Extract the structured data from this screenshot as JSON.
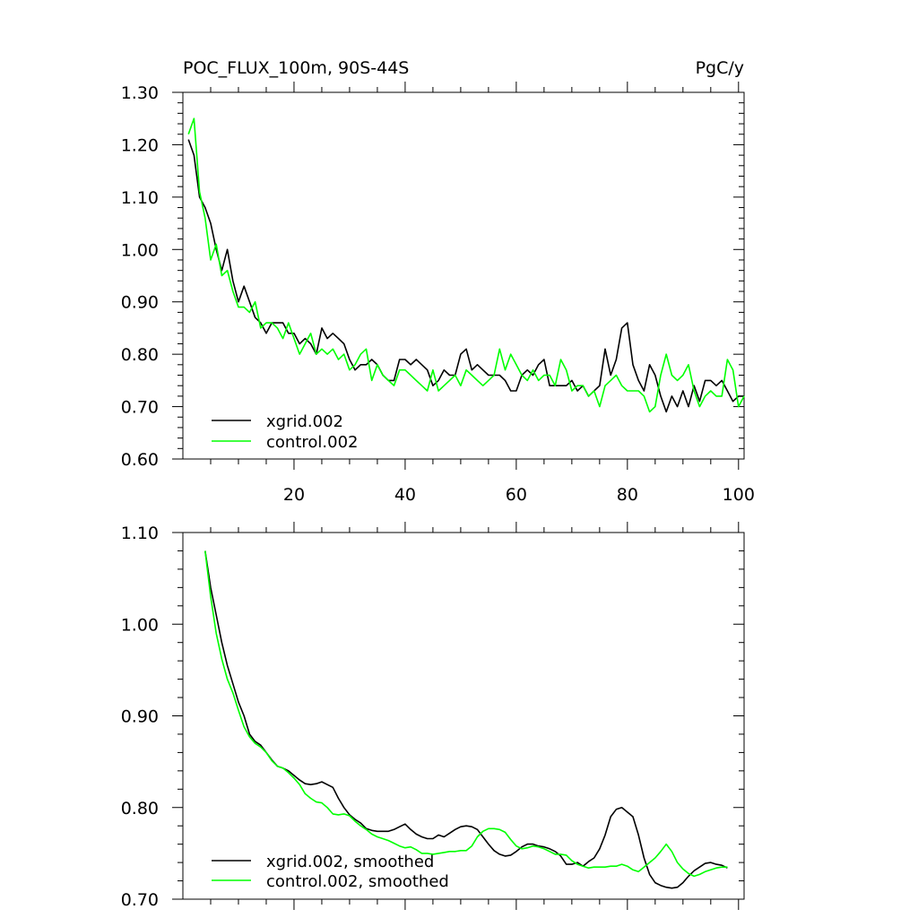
{
  "title_left": "POC_FLUX_100m, 90S-44S",
  "title_right": "PgC/y",
  "chart_data": [
    {
      "type": "line",
      "title": "POC_FLUX_100m, 90S-44S",
      "units": "PgC/y",
      "xlim": [
        0,
        101
      ],
      "ylim": [
        0.6,
        1.3
      ],
      "x_ticks": [
        20,
        40,
        60,
        80,
        100
      ],
      "x_tick_labels": [
        "20",
        "40",
        "60",
        "80",
        "100"
      ],
      "y_ticks": [
        0.6,
        0.7,
        0.8,
        0.9,
        1.0,
        1.1,
        1.2,
        1.3
      ],
      "y_tick_labels": [
        "0.60",
        "0.70",
        "0.80",
        "0.90",
        "1.00",
        "1.10",
        "1.20",
        "1.30"
      ],
      "grid": false,
      "legend_position": "bottom-left",
      "series": [
        {
          "name": "xgrid.002",
          "color": "#000000",
          "x": [
            1,
            2,
            3,
            4,
            5,
            6,
            7,
            8,
            9,
            10,
            11,
            12,
            13,
            14,
            15,
            16,
            17,
            18,
            19,
            20,
            21,
            22,
            23,
            24,
            25,
            26,
            27,
            28,
            29,
            30,
            31,
            32,
            33,
            34,
            35,
            36,
            37,
            38,
            39,
            40,
            41,
            42,
            43,
            44,
            45,
            46,
            47,
            48,
            49,
            50,
            51,
            52,
            53,
            54,
            55,
            56,
            57,
            58,
            59,
            60,
            61,
            62,
            63,
            64,
            65,
            66,
            67,
            68,
            69,
            70,
            71,
            72,
            73,
            74,
            75,
            76,
            77,
            78,
            79,
            80,
            81,
            82,
            83,
            84,
            85,
            86,
            87,
            88,
            89,
            90,
            91,
            92,
            93,
            94,
            95,
            96,
            97,
            98,
            99,
            100,
            101
          ],
          "y": [
            1.21,
            1.18,
            1.1,
            1.08,
            1.05,
            1.0,
            0.96,
            1.0,
            0.94,
            0.9,
            0.93,
            0.9,
            0.87,
            0.86,
            0.84,
            0.86,
            0.86,
            0.86,
            0.84,
            0.84,
            0.82,
            0.83,
            0.82,
            0.8,
            0.85,
            0.83,
            0.84,
            0.83,
            0.82,
            0.79,
            0.77,
            0.78,
            0.78,
            0.79,
            0.78,
            0.76,
            0.75,
            0.75,
            0.79,
            0.79,
            0.78,
            0.79,
            0.78,
            0.77,
            0.74,
            0.75,
            0.77,
            0.76,
            0.76,
            0.8,
            0.81,
            0.77,
            0.78,
            0.77,
            0.76,
            0.76,
            0.76,
            0.75,
            0.73,
            0.73,
            0.76,
            0.77,
            0.76,
            0.78,
            0.79,
            0.74,
            0.74,
            0.74,
            0.74,
            0.75,
            0.73,
            0.74,
            0.72,
            0.73,
            0.74,
            0.81,
            0.76,
            0.79,
            0.85,
            0.86,
            0.78,
            0.75,
            0.73,
            0.78,
            0.76,
            0.72,
            0.69,
            0.72,
            0.7,
            0.73,
            0.7,
            0.74,
            0.71,
            0.75,
            0.75,
            0.74,
            0.75,
            0.73,
            0.71,
            0.72,
            0.72
          ]
        },
        {
          "name": "control.002",
          "color": "#00ff00",
          "x": [
            1,
            2,
            3,
            4,
            5,
            6,
            7,
            8,
            9,
            10,
            11,
            12,
            13,
            14,
            15,
            16,
            17,
            18,
            19,
            20,
            21,
            22,
            23,
            24,
            25,
            26,
            27,
            28,
            29,
            30,
            31,
            32,
            33,
            34,
            35,
            36,
            37,
            38,
            39,
            40,
            41,
            42,
            43,
            44,
            45,
            46,
            47,
            48,
            49,
            50,
            51,
            52,
            53,
            54,
            55,
            56,
            57,
            58,
            59,
            60,
            61,
            62,
            63,
            64,
            65,
            66,
            67,
            68,
            69,
            70,
            71,
            72,
            73,
            74,
            75,
            76,
            77,
            78,
            79,
            80,
            81,
            82,
            83,
            84,
            85,
            86,
            87,
            88,
            89,
            90,
            91,
            92,
            93,
            94,
            95,
            96,
            97,
            98,
            99,
            100,
            101
          ],
          "y": [
            1.22,
            1.25,
            1.11,
            1.06,
            0.98,
            1.01,
            0.95,
            0.96,
            0.92,
            0.89,
            0.89,
            0.88,
            0.9,
            0.85,
            0.86,
            0.86,
            0.85,
            0.83,
            0.86,
            0.83,
            0.8,
            0.82,
            0.84,
            0.8,
            0.81,
            0.8,
            0.81,
            0.79,
            0.8,
            0.77,
            0.78,
            0.8,
            0.81,
            0.75,
            0.78,
            0.76,
            0.75,
            0.74,
            0.77,
            0.77,
            0.76,
            0.75,
            0.74,
            0.73,
            0.77,
            0.73,
            0.74,
            0.75,
            0.76,
            0.74,
            0.77,
            0.76,
            0.75,
            0.74,
            0.75,
            0.76,
            0.81,
            0.77,
            0.8,
            0.78,
            0.76,
            0.75,
            0.77,
            0.75,
            0.76,
            0.76,
            0.74,
            0.79,
            0.77,
            0.73,
            0.74,
            0.74,
            0.72,
            0.73,
            0.7,
            0.74,
            0.75,
            0.76,
            0.74,
            0.73,
            0.73,
            0.73,
            0.72,
            0.69,
            0.7,
            0.76,
            0.8,
            0.76,
            0.75,
            0.76,
            0.78,
            0.73,
            0.7,
            0.72,
            0.73,
            0.72,
            0.72,
            0.79,
            0.77,
            0.7,
            0.72
          ]
        }
      ]
    },
    {
      "type": "line",
      "xlim": [
        0,
        101
      ],
      "ylim": [
        0.7,
        1.1
      ],
      "y_ticks": [
        0.7,
        0.8,
        0.9,
        1.0,
        1.1
      ],
      "y_tick_labels": [
        "0.70",
        "0.80",
        "0.90",
        "1.00",
        "1.10"
      ],
      "grid": false,
      "legend_position": "bottom-left",
      "series": [
        {
          "name": "xgrid.002, smoothed",
          "color": "#000000",
          "x": [
            4,
            5,
            6,
            7,
            8,
            9,
            10,
            11,
            12,
            13,
            14,
            15,
            16,
            17,
            18,
            19,
            20,
            21,
            22,
            23,
            24,
            25,
            26,
            27,
            28,
            29,
            30,
            31,
            32,
            33,
            34,
            35,
            36,
            37,
            38,
            39,
            40,
            41,
            42,
            43,
            44,
            45,
            46,
            47,
            48,
            49,
            50,
            51,
            52,
            53,
            54,
            55,
            56,
            57,
            58,
            59,
            60,
            61,
            62,
            63,
            64,
            65,
            66,
            67,
            68,
            69,
            70,
            71,
            72,
            73,
            74,
            75,
            76,
            77,
            78,
            79,
            80,
            81,
            82,
            83,
            84,
            85,
            86,
            87,
            88,
            89,
            90,
            91,
            92,
            93,
            94,
            95,
            96,
            97,
            98
          ],
          "y": [
            1.08,
            1.04,
            1.01,
            0.98,
            0.955,
            0.935,
            0.915,
            0.9,
            0.88,
            0.872,
            0.868,
            0.86,
            0.852,
            0.845,
            0.843,
            0.84,
            0.835,
            0.83,
            0.826,
            0.825,
            0.826,
            0.828,
            0.825,
            0.822,
            0.81,
            0.8,
            0.792,
            0.787,
            0.783,
            0.777,
            0.775,
            0.774,
            0.774,
            0.774,
            0.776,
            0.779,
            0.782,
            0.776,
            0.771,
            0.768,
            0.766,
            0.766,
            0.77,
            0.768,
            0.772,
            0.776,
            0.779,
            0.78,
            0.779,
            0.776,
            0.768,
            0.76,
            0.753,
            0.749,
            0.747,
            0.748,
            0.752,
            0.757,
            0.76,
            0.76,
            0.758,
            0.757,
            0.755,
            0.752,
            0.747,
            0.738,
            0.738,
            0.74,
            0.736,
            0.741,
            0.745,
            0.755,
            0.77,
            0.79,
            0.798,
            0.8,
            0.795,
            0.79,
            0.77,
            0.745,
            0.727,
            0.718,
            0.715,
            0.713,
            0.712,
            0.713,
            0.718,
            0.725,
            0.731,
            0.735,
            0.739,
            0.74,
            0.738,
            0.737,
            0.734
          ]
        },
        {
          "name": "control.002, smoothed",
          "color": "#00ff00",
          "x": [
            4,
            5,
            6,
            7,
            8,
            9,
            10,
            11,
            12,
            13,
            14,
            15,
            16,
            17,
            18,
            19,
            20,
            21,
            22,
            23,
            24,
            25,
            26,
            27,
            28,
            29,
            30,
            31,
            32,
            33,
            34,
            35,
            36,
            37,
            38,
            39,
            40,
            41,
            42,
            43,
            44,
            45,
            46,
            47,
            48,
            49,
            50,
            51,
            52,
            53,
            54,
            55,
            56,
            57,
            58,
            59,
            60,
            61,
            62,
            63,
            64,
            65,
            66,
            67,
            68,
            69,
            70,
            71,
            72,
            73,
            74,
            75,
            76,
            77,
            78,
            79,
            80,
            81,
            82,
            83,
            84,
            85,
            86,
            87,
            88,
            89,
            90,
            91,
            92,
            93,
            94,
            95,
            96,
            97,
            98
          ],
          "y": [
            1.08,
            1.03,
            0.99,
            0.962,
            0.94,
            0.925,
            0.906,
            0.888,
            0.877,
            0.87,
            0.866,
            0.86,
            0.851,
            0.845,
            0.843,
            0.838,
            0.832,
            0.825,
            0.815,
            0.81,
            0.806,
            0.805,
            0.8,
            0.793,
            0.792,
            0.793,
            0.791,
            0.785,
            0.78,
            0.776,
            0.771,
            0.768,
            0.766,
            0.764,
            0.761,
            0.758,
            0.756,
            0.757,
            0.754,
            0.75,
            0.75,
            0.749,
            0.75,
            0.751,
            0.752,
            0.752,
            0.753,
            0.753,
            0.758,
            0.768,
            0.774,
            0.777,
            0.777,
            0.776,
            0.773,
            0.765,
            0.758,
            0.755,
            0.756,
            0.758,
            0.757,
            0.755,
            0.752,
            0.749,
            0.749,
            0.748,
            0.742,
            0.738,
            0.736,
            0.734,
            0.735,
            0.735,
            0.735,
            0.736,
            0.736,
            0.738,
            0.736,
            0.732,
            0.73,
            0.735,
            0.74,
            0.745,
            0.752,
            0.76,
            0.752,
            0.74,
            0.733,
            0.728,
            0.725,
            0.727,
            0.73,
            0.732,
            0.734,
            0.735,
            0.735
          ]
        }
      ]
    }
  ]
}
